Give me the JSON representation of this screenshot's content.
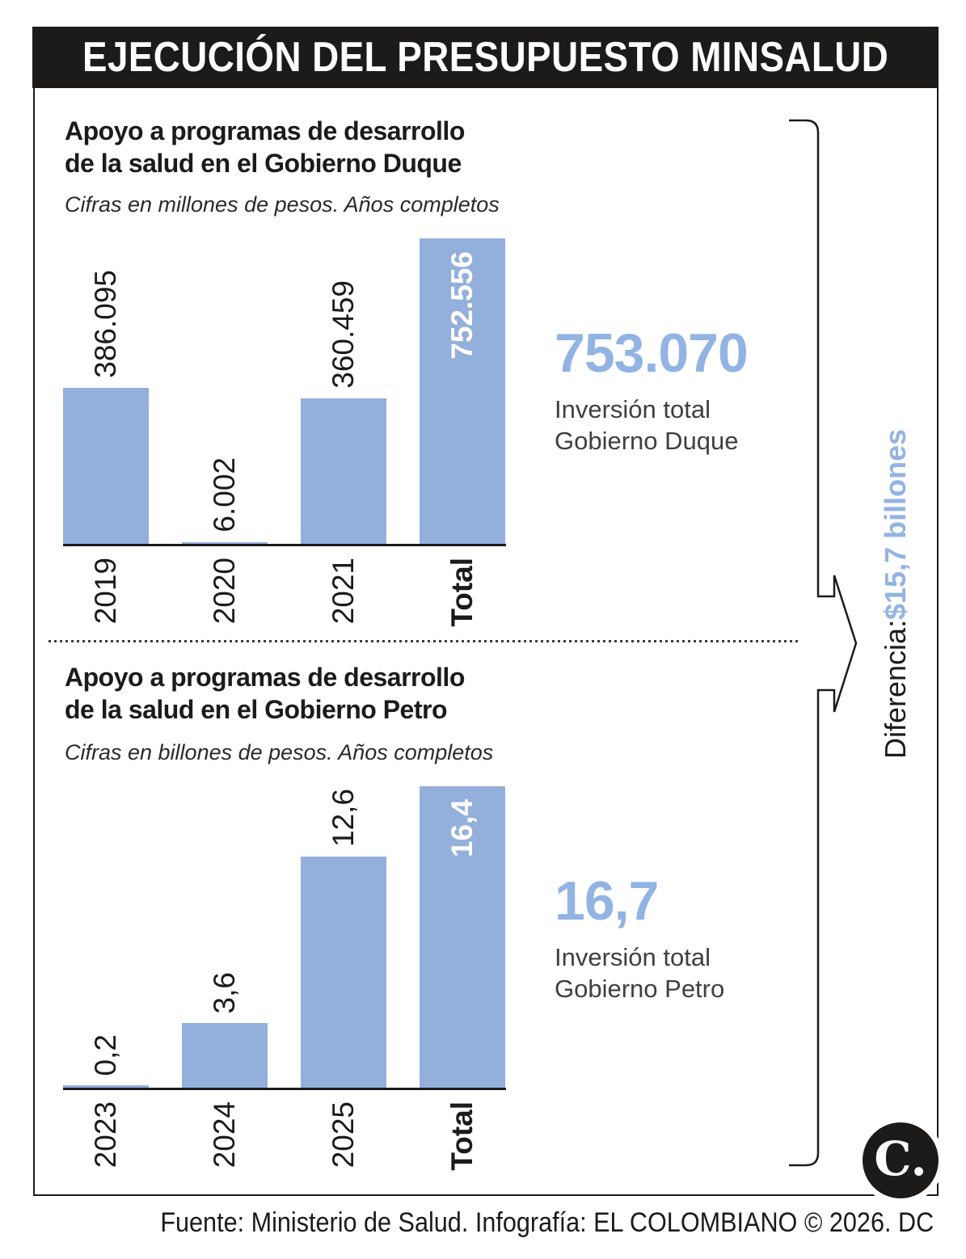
{
  "header": {
    "title": "EJECUCIÓN DEL PRESUPUESTO MINSALUD"
  },
  "charts": [
    {
      "title_line1": "Apoyo a programas de desarrollo",
      "title_line2": "de la salud en el Gobierno Duque",
      "subtitle": "Cifras en millones de pesos. Años completos",
      "categories": [
        "2019",
        "2020",
        "2021",
        "Total"
      ],
      "values": [
        "386.095",
        "6.002",
        "360.459",
        "752.556"
      ],
      "summary_value": "753.070",
      "summary_line1": "Inversión total",
      "summary_line2": "Gobierno Duque"
    },
    {
      "title_line1": "Apoyo a programas de desarrollo",
      "title_line2": "de la salud en el Gobierno Petro",
      "subtitle": "Cifras en billones de pesos. Años completos",
      "categories": [
        "2023",
        "2024",
        "2025",
        "Total"
      ],
      "values": [
        "0,2",
        "3,6",
        "12,6",
        "16,4"
      ],
      "summary_value": "16,7",
      "summary_line1": "Inversión total",
      "summary_line2": "Gobierno Petro"
    }
  ],
  "difference": {
    "prefix": "Diferencia: ",
    "value": "$15,7 billones"
  },
  "footer": {
    "credit": "Fuente: Ministerio de Salud. Infografía: EL COLOMBIANO © 2026. DC"
  },
  "logo": {
    "monogram": "C."
  },
  "colors": {
    "bar_blue": "#93afdc",
    "accent_blue": "#92b4e3",
    "ink": "#1d1b1a"
  },
  "chart_data": [
    {
      "type": "bar",
      "title": "Apoyo a programas de desarrollo de la salud en el Gobierno Duque",
      "subtitle": "Cifras en millones de pesos. Años completos",
      "categories": [
        "2019",
        "2020",
        "2021",
        "Total"
      ],
      "values": [
        386095,
        6002,
        360459,
        752556
      ],
      "bar_labels": [
        "386.095",
        "6.002",
        "360.459",
        "752.556"
      ],
      "unit": "millones de pesos",
      "annotation": {
        "value": 753070,
        "label": "Inversión total Gobierno Duque"
      },
      "ylim": [
        0,
        752556
      ],
      "grid": false,
      "legend": false,
      "bar_label_rotation": -90
    },
    {
      "type": "bar",
      "title": "Apoyo a programas de desarrollo de la salud en el Gobierno Petro",
      "subtitle": "Cifras en billones de pesos. Años completos",
      "categories": [
        "2023",
        "2024",
        "2025",
        "Total"
      ],
      "values": [
        0.2,
        3.6,
        12.6,
        16.4
      ],
      "bar_labels": [
        "0,2",
        "3,6",
        "12,6",
        "16,4"
      ],
      "unit": "billones de pesos",
      "annotation": {
        "value": 16.7,
        "label": "Inversión total Gobierno Petro"
      },
      "ylim": [
        0,
        16.4
      ],
      "grid": false,
      "legend": false,
      "bar_label_rotation": -90
    }
  ]
}
